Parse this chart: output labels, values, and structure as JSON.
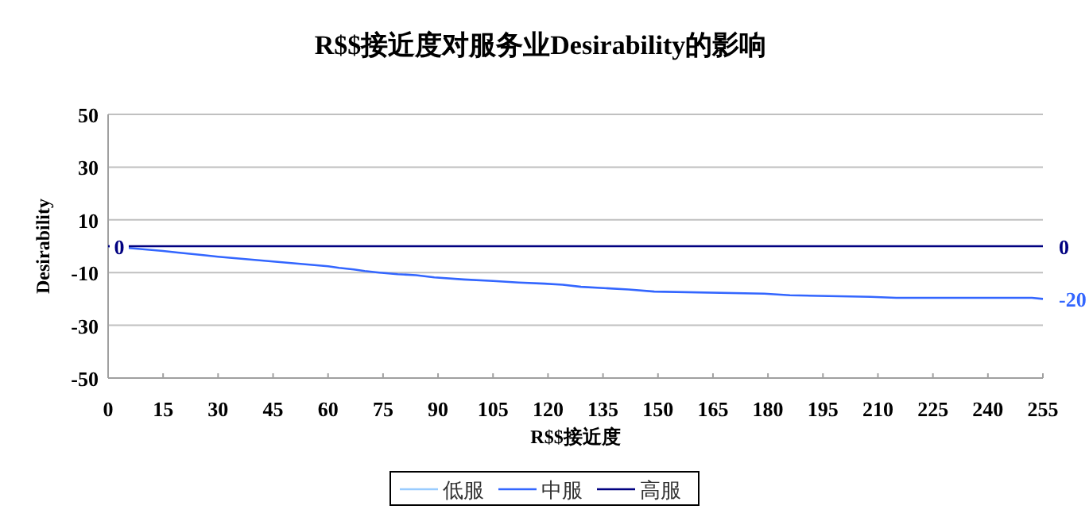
{
  "chart_data": {
    "type": "line",
    "title": "R$$接近度对服务业Desirability的影响",
    "xlabel": "R$$接近度",
    "ylabel": "Desirability",
    "xlim": [
      0,
      255
    ],
    "xticks": [
      0,
      15,
      30,
      45,
      60,
      75,
      90,
      105,
      120,
      135,
      150,
      165,
      180,
      195,
      210,
      225,
      240,
      255
    ],
    "ylim": [
      -50,
      50
    ],
    "yticks": [
      -50,
      -30,
      -10,
      10,
      30,
      50
    ],
    "grid": "y",
    "legend": "bottom",
    "series": [
      {
        "name": "低服",
        "color": "#99ccff"
      },
      {
        "name": "中服",
        "color": "#3366ff",
        "x": [
          0,
          10,
          15,
          19,
          26,
          30,
          35,
          40,
          45,
          50,
          55,
          60,
          63,
          67,
          70,
          74,
          79,
          84,
          89,
          97,
          105,
          112,
          119,
          124,
          129,
          142,
          149,
          179,
          186,
          208,
          215,
          252,
          255
        ],
        "values": [
          0,
          -1.2,
          -1.8,
          -2.4,
          -3.4,
          -4,
          -4.6,
          -5.2,
          -5.8,
          -6.4,
          -7,
          -7.6,
          -8.2,
          -8.8,
          -9.4,
          -10,
          -10.6,
          -11,
          -11.8,
          -12.6,
          -13.2,
          -13.8,
          -14.2,
          -14.6,
          -15.4,
          -16.4,
          -17.2,
          -18,
          -18.6,
          -19.2,
          -19.6,
          -19.6,
          -20
        ],
        "value_labels": [
          null,
          null,
          null,
          null,
          null,
          null,
          null,
          null,
          null,
          null,
          null,
          null,
          null,
          null,
          null,
          null,
          null,
          null,
          null,
          null,
          null,
          null,
          null,
          null,
          null,
          null,
          null,
          null,
          null,
          null,
          null,
          null,
          "-20"
        ]
      },
      {
        "name": "高服",
        "color": "#000080",
        "x": [
          0,
          255
        ],
        "values": [
          0,
          0
        ],
        "value_labels": [
          "0",
          "0"
        ]
      }
    ]
  }
}
